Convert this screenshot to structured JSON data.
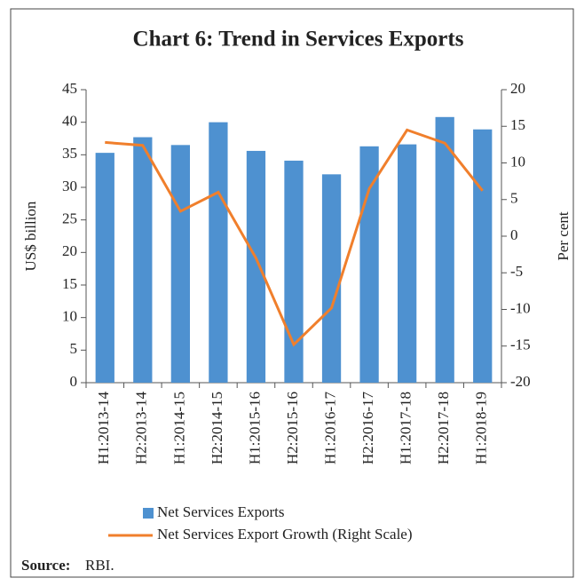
{
  "chart_data": {
    "type": "bar_line",
    "title": "Chart 6: Trend in Services Exports",
    "categories": [
      "H1:2013-14",
      "H2:2013-14",
      "H1:2014-15",
      "H2:2014-15",
      "H1:2015-16",
      "H2:2015-16",
      "H1:2016-17",
      "H2:2016-17",
      "H1:2017-18",
      "H2:2017-18",
      "H1:2018-19"
    ],
    "series": [
      {
        "name": "Net Services Exports",
        "type": "bar",
        "color": "#4e91d0",
        "values": [
          35.3,
          37.7,
          36.5,
          40.0,
          35.6,
          34.1,
          32.0,
          36.3,
          36.6,
          40.8,
          38.9
        ]
      },
      {
        "name": "Net Services Export Growth (Right Scale)",
        "type": "line",
        "axis": "y2",
        "color": "#f07f2c",
        "values": [
          12.8,
          12.4,
          3.4,
          6.0,
          -3.0,
          -14.8,
          -9.8,
          6.5,
          14.5,
          12.7,
          6.2
        ]
      }
    ],
    "ylabel": "US$ billion",
    "y2label": "Per cent",
    "ylim": [
      0,
      45
    ],
    "yticks": [
      0,
      5,
      10,
      15,
      20,
      25,
      30,
      35,
      40,
      45
    ],
    "y2lim": [
      -20,
      20
    ],
    "y2ticks": [
      -20,
      -15,
      -10,
      -5,
      0,
      5,
      10,
      15,
      20
    ],
    "source_label": "Source:",
    "source_text": "RBI."
  }
}
